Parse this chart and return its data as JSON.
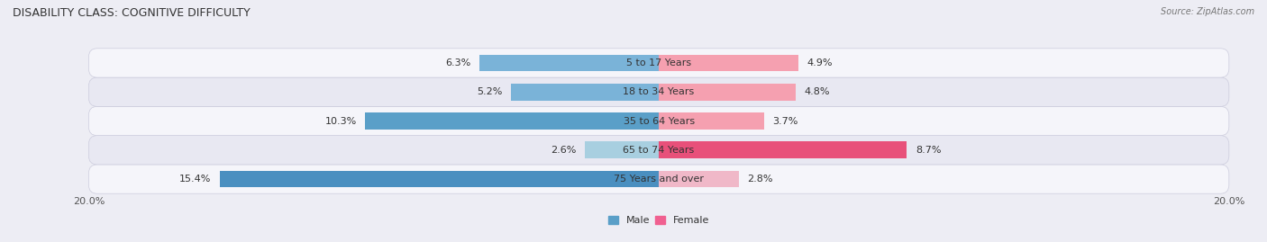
{
  "title": "DISABILITY CLASS: COGNITIVE DIFFICULTY",
  "source": "Source: ZipAtlas.com",
  "categories": [
    "5 to 17 Years",
    "18 to 34 Years",
    "35 to 64 Years",
    "65 to 74 Years",
    "75 Years and over"
  ],
  "male_values": [
    6.3,
    5.2,
    10.3,
    2.6,
    15.4
  ],
  "female_values": [
    4.9,
    4.8,
    3.7,
    8.7,
    2.8
  ],
  "male_colors": [
    "#7ab3d8",
    "#7ab3d8",
    "#5a9fc8",
    "#a8cfe0",
    "#4a8fc0"
  ],
  "female_colors": [
    "#f5a0b0",
    "#f5a0b0",
    "#f5a0b0",
    "#e8507a",
    "#f0b8c8"
  ],
  "max_val": 20.0,
  "bar_height": 0.58,
  "bg_color": "#ededf4",
  "row_colors": [
    "#f5f5fa",
    "#e8e8f2"
  ],
  "title_fontsize": 9,
  "label_fontsize": 8,
  "tick_fontsize": 8,
  "legend_fontsize": 8,
  "male_legend_color": "#5a9fc8",
  "female_legend_color": "#f06090"
}
